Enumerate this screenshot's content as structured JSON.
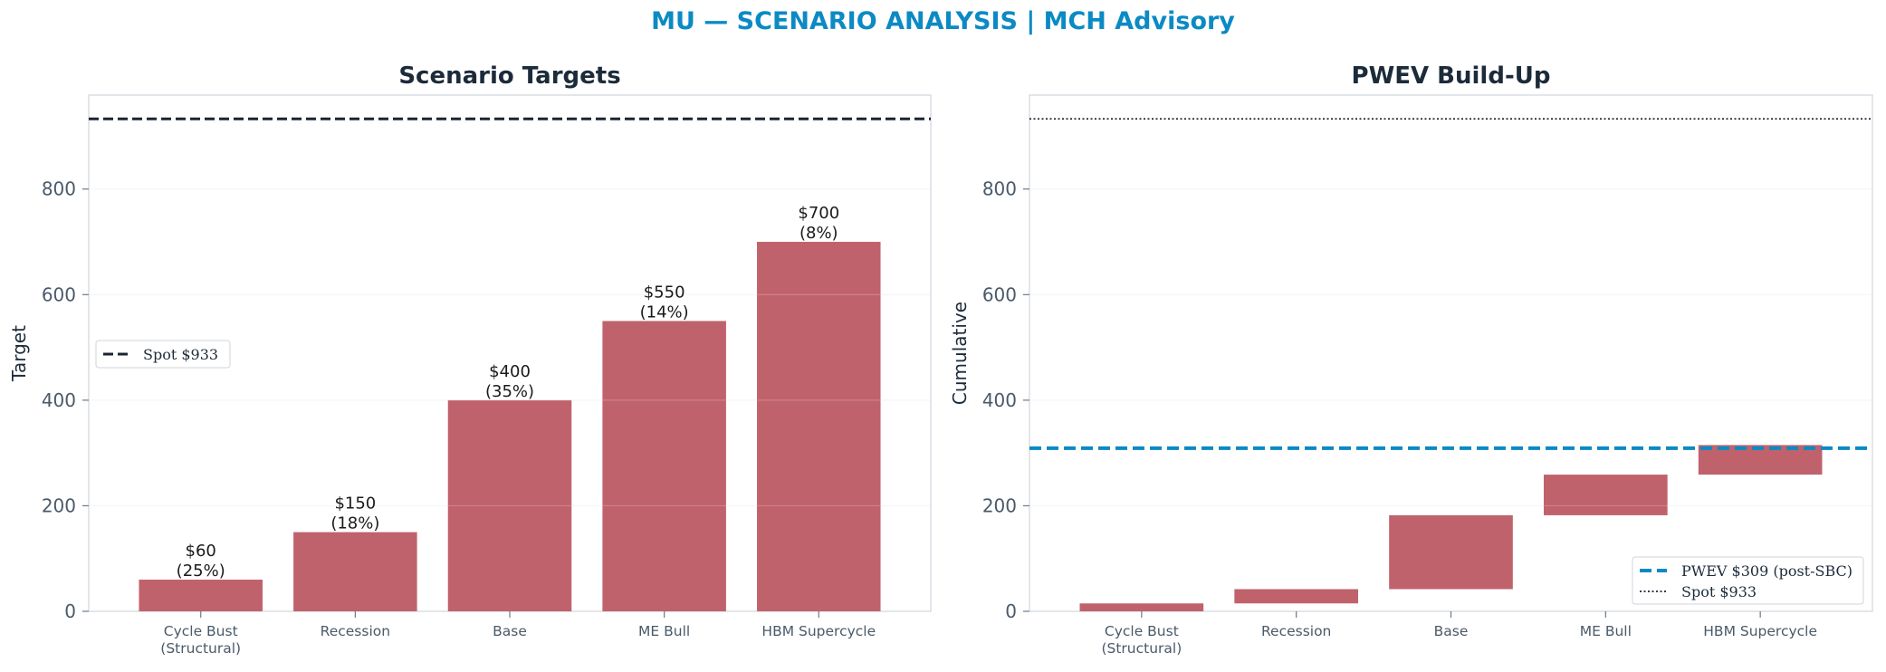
{
  "suptitle": "MU — SCENARIO ANALYSIS | MCH Advisory",
  "colors": {
    "bar": "#c0626c",
    "spot_line": "#1c2433",
    "pwev_line": "#0b8ac4",
    "title": "#1c2b3a",
    "suptitle": "#0b8ac4"
  },
  "chart_data": [
    {
      "type": "bar",
      "title": "Scenario Targets",
      "ylabel": "Target",
      "xlabel": "",
      "ylim": [
        0,
        978
      ],
      "yticks": [
        0,
        200,
        400,
        600,
        800
      ],
      "grid": true,
      "categories": [
        "Cycle Bust\n(Structural)",
        "Recession",
        "Base",
        "ME Bull",
        "HBM Supercycle"
      ],
      "values": [
        60,
        150,
        400,
        550,
        700
      ],
      "value_labels": [
        "$60",
        "$150",
        "$400",
        "$550",
        "$700"
      ],
      "prob_labels": [
        "(25%)",
        "(18%)",
        "(35%)",
        "(14%)",
        "(8%)"
      ],
      "reference_lines": [
        {
          "name": "Spot $933",
          "y": 933,
          "style": "dashed"
        }
      ],
      "legend": {
        "placement": "center-left",
        "entries": [
          "Spot $933"
        ]
      }
    },
    {
      "type": "bar",
      "subtype": "waterfall",
      "title": "PWEV Build-Up",
      "ylabel": "Cumulative",
      "xlabel": "",
      "ylim": [
        0,
        978
      ],
      "yticks": [
        0,
        200,
        400,
        600,
        800
      ],
      "grid": true,
      "categories": [
        "Cycle Bust\n(Structural)",
        "Recession",
        "Base",
        "ME Bull",
        "HBM Supercycle"
      ],
      "contributions": [
        15,
        27,
        140,
        77,
        56
      ],
      "bottoms": [
        0,
        15,
        42,
        182,
        259
      ],
      "reference_lines": [
        {
          "name": "PWEV $309 (post-SBC)",
          "y": 309,
          "style": "dashed"
        },
        {
          "name": "Spot $933",
          "y": 933,
          "style": "dotted"
        }
      ],
      "legend": {
        "placement": "lower-right",
        "entries": [
          "PWEV $309 (post-SBC)",
          "Spot $933"
        ]
      }
    }
  ]
}
